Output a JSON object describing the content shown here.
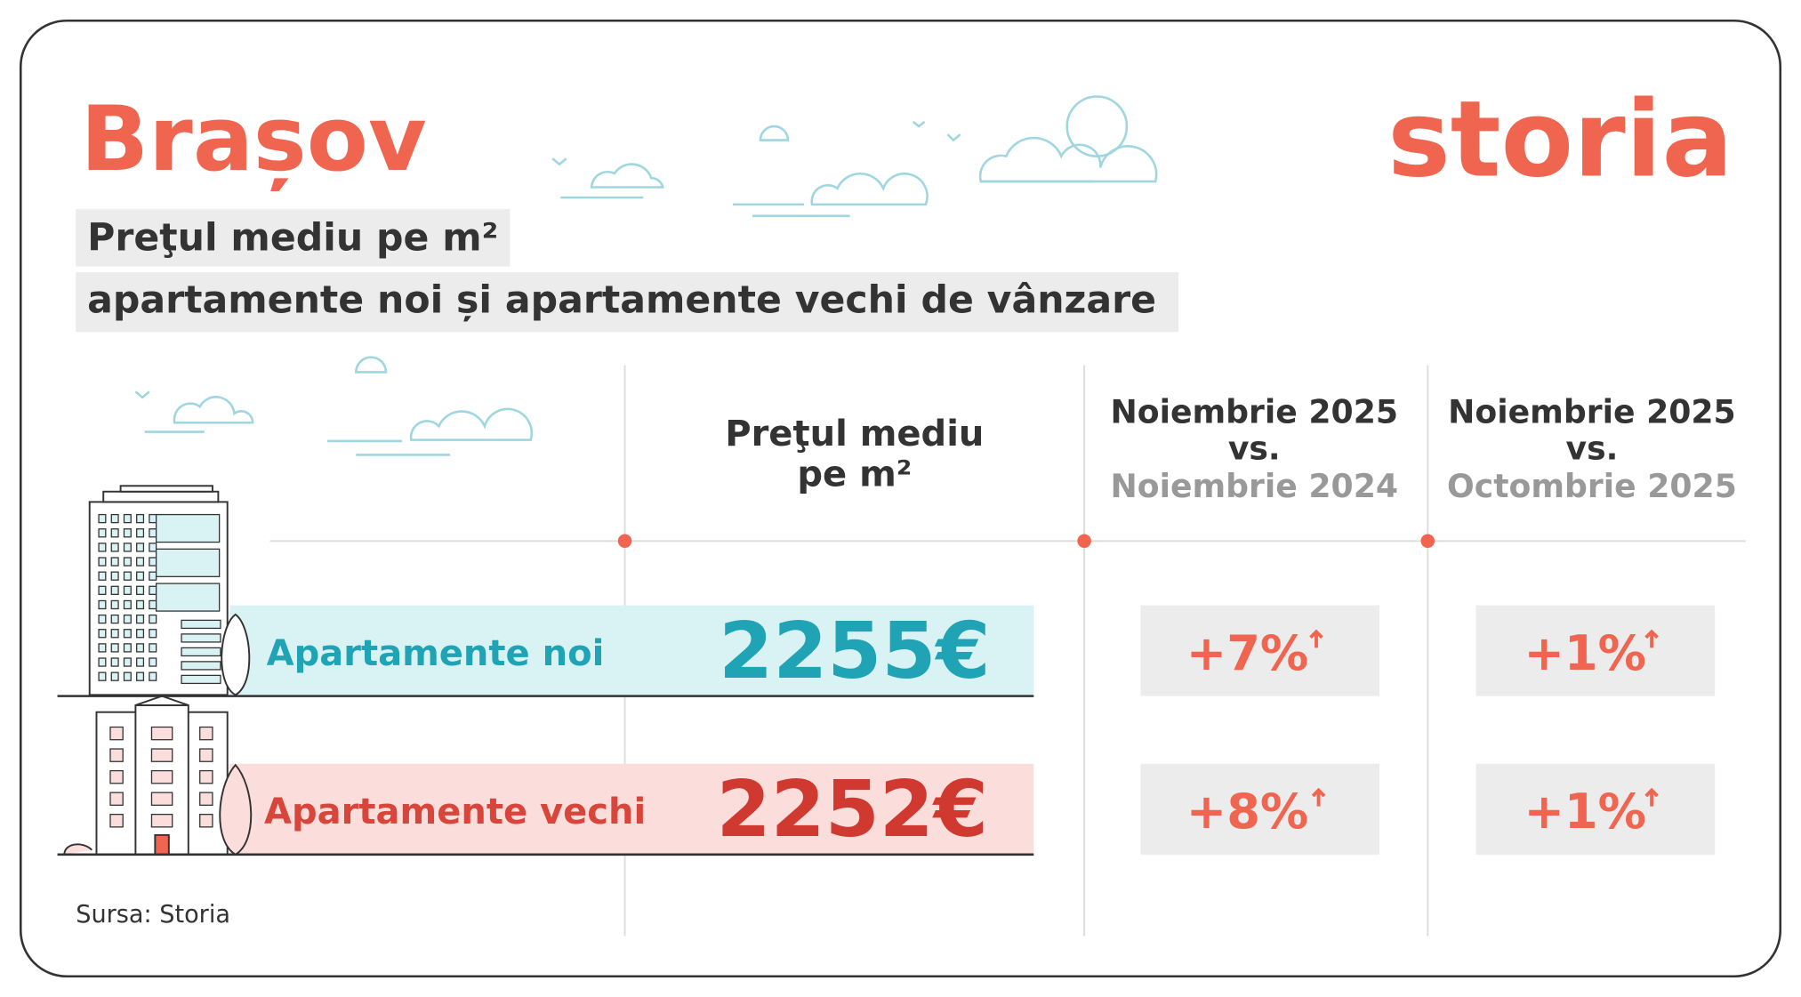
{
  "header": {
    "title": "Brașov",
    "logo": "storia",
    "subtitle_lines": [
      "Preţul mediu pe m²",
      "apartamente noi și apartamente vechi de vânzare"
    ]
  },
  "table": {
    "columns": [
      {
        "lines": [
          "Preţul mediu",
          "pe m²"
        ]
      },
      {
        "lines": [
          "Noiembrie 2025",
          "vs.",
          "Noiembrie 2024"
        ]
      },
      {
        "lines": [
          "Noiembrie 2025",
          "vs.",
          "Octombrie 2025"
        ]
      }
    ],
    "rows": [
      {
        "label": "Apartamente noi",
        "price": "2255€",
        "yoy": "+7%",
        "mom": "+1%"
      },
      {
        "label": "Apartamente vechi",
        "price": "2252€",
        "yoy": "+8%",
        "mom": "+1%"
      }
    ]
  },
  "footer": {
    "source": "Sursa: Storia"
  }
}
